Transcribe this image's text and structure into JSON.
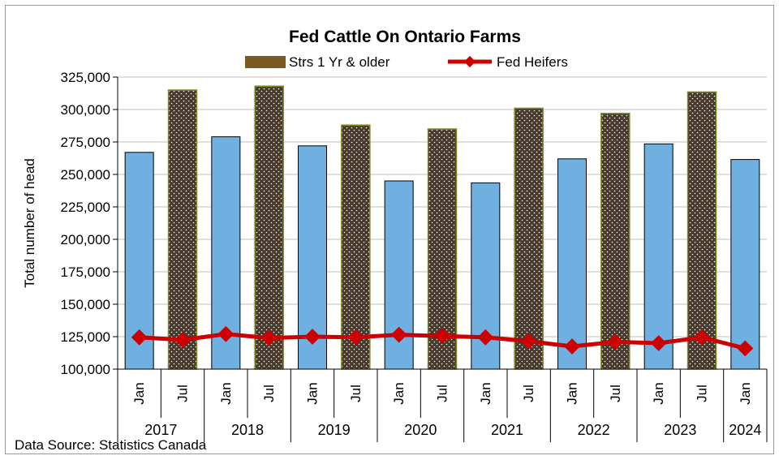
{
  "chart_data": {
    "type": "bar",
    "title": "Fed Cattle On Ontario Farms",
    "ylabel": "Total number of head",
    "xlabel": "",
    "ylim": [
      100000,
      325000
    ],
    "ytick_step": 25000,
    "yticks": [
      "100,000",
      "125,000",
      "150,000",
      "175,000",
      "200,000",
      "225,000",
      "250,000",
      "275,000",
      "300,000",
      "325,000"
    ],
    "categories": [
      "Jan",
      "Jul",
      "Jan",
      "Jul",
      "Jan",
      "Jul",
      "Jan",
      "Jul",
      "Jan",
      "Jul",
      "Jan",
      "Jul",
      "Jan",
      "Jul",
      "Jan"
    ],
    "years": [
      {
        "label": "2017",
        "span": 2
      },
      {
        "label": "2018",
        "span": 2
      },
      {
        "label": "2019",
        "span": 2
      },
      {
        "label": "2020",
        "span": 2
      },
      {
        "label": "2021",
        "span": 2
      },
      {
        "label": "2022",
        "span": 2
      },
      {
        "label": "2023",
        "span": 2
      },
      {
        "label": "2024",
        "span": 1
      }
    ],
    "series": [
      {
        "name": "Strs 1 Yr & older",
        "type": "bar",
        "values": [
          267000,
          315000,
          279000,
          318000,
          272000,
          288000,
          245000,
          285000,
          243500,
          301000,
          262000,
          297000,
          273500,
          313500,
          261500
        ]
      },
      {
        "name": "Fed Heifers",
        "type": "line",
        "values": [
          124500,
          122500,
          127000,
          124000,
          125000,
          124500,
          126500,
          125500,
          124500,
          121500,
          117500,
          121000,
          120000,
          124500,
          116000
        ]
      }
    ],
    "legend": "top-center",
    "grid": true
  },
  "colors": {
    "jan_bar": "#6fb0e0",
    "jul_bar": "#4a3a2e",
    "bar_outline": "#000000",
    "jul_outline": "#7a8b1e",
    "legend_bar": "#7b5a22",
    "line": "#cc0000",
    "grid": "#bfbfbf"
  },
  "footer": {
    "source": "Data Source: Statistics Canada"
  }
}
